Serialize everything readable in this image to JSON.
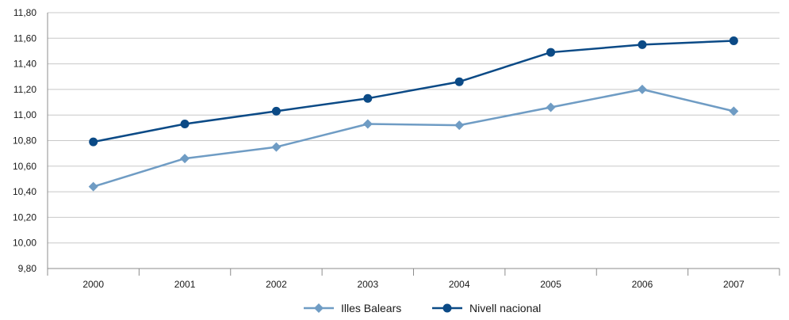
{
  "chart_data": {
    "type": "line",
    "title": "",
    "xlabel": "",
    "ylabel": "",
    "categories": [
      "2000",
      "2001",
      "2002",
      "2003",
      "2004",
      "2005",
      "2006",
      "2007"
    ],
    "ylim": [
      9.8,
      11.8
    ],
    "y_ticks": [
      "9,80",
      "10,00",
      "10,20",
      "10,40",
      "10,60",
      "10,80",
      "11,00",
      "11,20",
      "11,40",
      "11,60",
      "11,80"
    ],
    "y_tick_values": [
      9.8,
      10.0,
      10.2,
      10.4,
      10.6,
      10.8,
      11.0,
      11.2,
      11.4,
      11.6,
      11.8
    ],
    "grid": true,
    "legend_position": "bottom",
    "series": [
      {
        "name": "Illes Balears",
        "marker": "diamond",
        "color": "#6f9cc4",
        "values": [
          10.44,
          10.66,
          10.75,
          10.93,
          10.92,
          11.06,
          11.2,
          11.03
        ]
      },
      {
        "name": "Nivell nacional",
        "marker": "circle",
        "color": "#0b4a86",
        "values": [
          10.79,
          10.93,
          11.03,
          11.13,
          11.26,
          11.49,
          11.55,
          11.58
        ]
      }
    ]
  }
}
